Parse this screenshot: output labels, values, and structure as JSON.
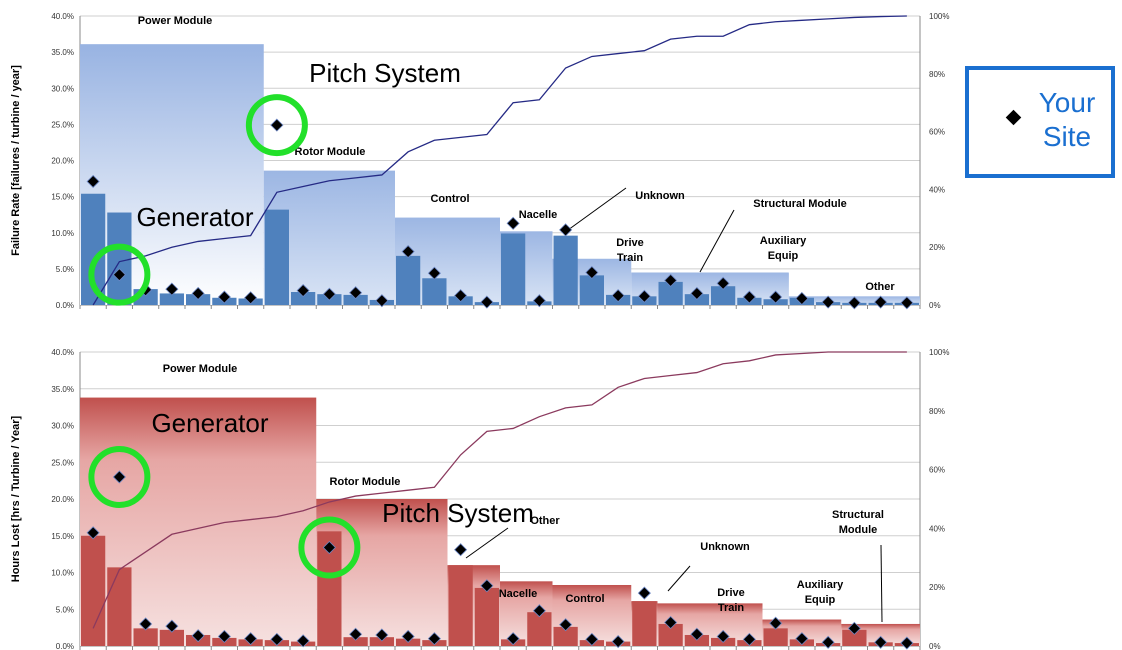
{
  "legend": {
    "label_line1": "Your",
    "label_line2": "Site",
    "color": "#1a6fd0"
  },
  "chart_data": [
    {
      "type": "bar",
      "ylabel": "Failure Rate [failures / turbine / year]",
      "ylim": [
        0,
        40
      ],
      "y2lim": [
        0,
        100
      ],
      "yticks": [
        "0.0%",
        "5.0%",
        "10.0%",
        "15.0%",
        "20.0%",
        "25.0%",
        "30.0%",
        "35.0%",
        "40.0%"
      ],
      "y2ticks": [
        "0%",
        "20%",
        "40%",
        "60%",
        "80%",
        "100%"
      ],
      "n_components": 32,
      "colors": {
        "module": "#9fb6e0",
        "component": "#4f81bd",
        "line": "#252a85",
        "marker": "#000000",
        "highlight": "#22e02a"
      },
      "modules": [
        {
          "label": "Power Module",
          "start": 0,
          "end": 7,
          "value": 36.1
        },
        {
          "label": "Rotor Module",
          "start": 7,
          "end": 12,
          "value": 18.6
        },
        {
          "label": "Control",
          "start": 12,
          "end": 16,
          "value": 12.1
        },
        {
          "label": "Nacelle",
          "start": 16,
          "end": 18,
          "value": 10.2
        },
        {
          "label": "Drive Train",
          "start": 18,
          "end": 21,
          "value": 6.4
        },
        {
          "label": "Auxiliary Equip",
          "start": 24,
          "end": 27,
          "value": 4.4
        },
        {
          "label": "Structural Module",
          "start": 21,
          "end": 27,
          "value": 4.5
        },
        {
          "label": "Other",
          "start": 27,
          "end": 32,
          "value": 1.2
        }
      ],
      "component_values": [
        15.4,
        12.8,
        2.2,
        1.6,
        1.5,
        1.0,
        0.9,
        13.2,
        1.8,
        1.5,
        1.4,
        0.7,
        6.8,
        3.7,
        1.2,
        0.4,
        9.9,
        0.5,
        9.6,
        4.1,
        1.4,
        1.2,
        3.2,
        1.5,
        2.6,
        1.0,
        0.8,
        1.0,
        0.4,
        0.3,
        0.3,
        0.3
      ],
      "your_site": [
        17.1,
        4.2,
        2.1,
        2.2,
        1.6,
        1.1,
        1.0,
        24.9,
        2.0,
        1.5,
        1.7,
        0.6,
        7.4,
        4.4,
        1.3,
        0.4,
        11.3,
        0.6,
        10.4,
        4.5,
        1.3,
        1.2,
        3.4,
        1.6,
        3.0,
        1.1,
        1.1,
        0.9,
        0.4,
        0.3,
        0.4,
        0.3
      ],
      "cumulative_pct": [
        0,
        15,
        17,
        20,
        22,
        23,
        24,
        39,
        41,
        43,
        44,
        45,
        53,
        57,
        58,
        59,
        70,
        71,
        82,
        86,
        87,
        88,
        92,
        93,
        93,
        97,
        98,
        98.5,
        99,
        99.5,
        99.8,
        100
      ],
      "annotations": [
        {
          "text": "Pitch System",
          "big": true
        },
        {
          "text": "Generator",
          "big": true
        },
        {
          "text": "Unknown",
          "big": false
        }
      ],
      "highlights": [
        7,
        1
      ]
    },
    {
      "type": "bar",
      "ylabel": "Hours Lost [hrs / Turbine / Year]",
      "ylim": [
        0,
        40
      ],
      "y2lim": [
        0,
        100
      ],
      "yticks": [
        "0.0%",
        "5.0%",
        "10.0%",
        "15.0%",
        "20.0%",
        "25.0%",
        "30.0%",
        "35.0%",
        "40.0%"
      ],
      "y2ticks": [
        "0%",
        "20%",
        "40%",
        "60%",
        "80%",
        "100%"
      ],
      "n_components": 32,
      "colors": {
        "module": "#c0504d",
        "module_light": "#f4dcdc",
        "component": "#c0504d",
        "line": "#8b3a5e",
        "marker": "#000000",
        "highlight": "#22e02a"
      },
      "modules": [
        {
          "label": "Power Module",
          "start": 0,
          "end": 9,
          "value": 33.8
        },
        {
          "label": "Rotor Module",
          "start": 9,
          "end": 14,
          "value": 20.0
        },
        {
          "label": "Other",
          "start": 14,
          "end": 16,
          "value": 11.0
        },
        {
          "label": "Nacelle",
          "start": 16,
          "end": 18,
          "value": 8.8
        },
        {
          "label": "Control",
          "start": 18,
          "end": 21,
          "value": 8.3
        },
        {
          "label": "Unknown",
          "start": 21,
          "end": 22,
          "value": 6.1
        },
        {
          "label": "Drive Train",
          "start": 22,
          "end": 26,
          "value": 5.8
        },
        {
          "label": "Auxiliary Equip",
          "start": 26,
          "end": 29,
          "value": 3.6
        },
        {
          "label": "Structural Module",
          "start": 29,
          "end": 32,
          "value": 3.0
        }
      ],
      "component_values": [
        15.0,
        10.7,
        2.4,
        2.2,
        1.5,
        1.1,
        0.9,
        0.8,
        0.6,
        15.6,
        1.2,
        1.2,
        1.0,
        0.8,
        11.0,
        7.9,
        0.9,
        4.6,
        2.6,
        0.8,
        0.6,
        6.1,
        3.0,
        1.5,
        1.1,
        0.8,
        2.4,
        0.9,
        0.4,
        2.2,
        0.5,
        0.4
      ],
      "your_site": [
        15.4,
        23.0,
        3.0,
        2.7,
        1.4,
        1.3,
        1.0,
        0.9,
        0.7,
        13.4,
        1.6,
        1.5,
        1.3,
        1.0,
        13.1,
        8.2,
        1.0,
        4.8,
        2.9,
        0.9,
        0.6,
        7.2,
        3.2,
        1.6,
        1.3,
        0.9,
        3.1,
        1.0,
        0.5,
        2.4,
        0.5,
        0.4
      ],
      "cumulative_pct": [
        6,
        26,
        32,
        38,
        40,
        42,
        43,
        44,
        46,
        49,
        51,
        52,
        53,
        54,
        65,
        73,
        74,
        78,
        81,
        82,
        88,
        91,
        92,
        93,
        96,
        97,
        99,
        99.5,
        100,
        100,
        100,
        100
      ],
      "annotations": [
        {
          "text": "Generator",
          "big": true
        },
        {
          "text": "Pitch System",
          "big": true
        }
      ],
      "highlights": [
        1,
        9
      ]
    }
  ]
}
